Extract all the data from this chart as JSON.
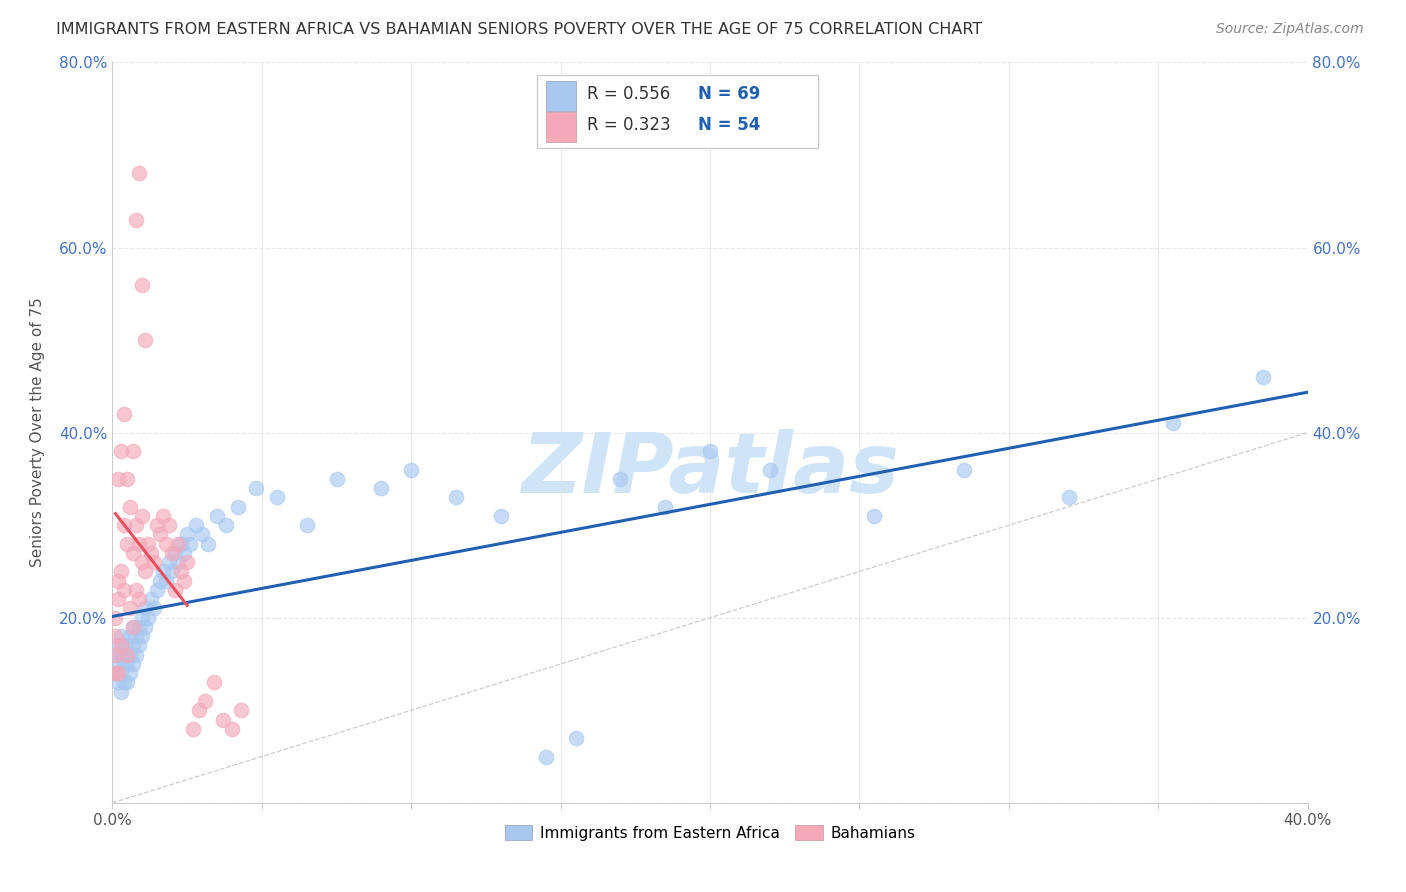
{
  "title": "IMMIGRANTS FROM EASTERN AFRICA VS BAHAMIAN SENIORS POVERTY OVER THE AGE OF 75 CORRELATION CHART",
  "source": "Source: ZipAtlas.com",
  "ylabel": "Seniors Poverty Over the Age of 75",
  "xlim": [
    0.0,
    0.4
  ],
  "ylim": [
    0.0,
    0.8
  ],
  "blue_color": "#a8c8f0",
  "pink_color": "#f4a8b8",
  "blue_line_color": "#2060b0",
  "pink_line_color": "#e85060",
  "blue_R": 0.556,
  "blue_N": 69,
  "pink_R": 0.323,
  "pink_N": 54,
  "watermark": "ZIPatlas",
  "watermark_color": "#d0e4f8",
  "legend_label_blue": "Immigrants from Eastern Africa",
  "legend_label_pink": "Bahamians",
  "blue_scatter_x": [
    0.001,
    0.001,
    0.002,
    0.002,
    0.002,
    0.003,
    0.003,
    0.003,
    0.003,
    0.004,
    0.004,
    0.004,
    0.005,
    0.005,
    0.005,
    0.006,
    0.006,
    0.006,
    0.007,
    0.007,
    0.007,
    0.008,
    0.008,
    0.009,
    0.009,
    0.01,
    0.01,
    0.011,
    0.011,
    0.012,
    0.013,
    0.014,
    0.015,
    0.016,
    0.017,
    0.018,
    0.019,
    0.02,
    0.021,
    0.022,
    0.023,
    0.024,
    0.025,
    0.026,
    0.028,
    0.03,
    0.032,
    0.035,
    0.038,
    0.042,
    0.048,
    0.055,
    0.065,
    0.075,
    0.09,
    0.1,
    0.115,
    0.13,
    0.145,
    0.155,
    0.17,
    0.185,
    0.2,
    0.22,
    0.255,
    0.285,
    0.32,
    0.355,
    0.385
  ],
  "blue_scatter_y": [
    0.14,
    0.16,
    0.13,
    0.15,
    0.17,
    0.12,
    0.14,
    0.16,
    0.18,
    0.13,
    0.15,
    0.17,
    0.13,
    0.15,
    0.16,
    0.14,
    0.16,
    0.18,
    0.15,
    0.17,
    0.19,
    0.16,
    0.18,
    0.17,
    0.19,
    0.18,
    0.2,
    0.19,
    0.21,
    0.2,
    0.22,
    0.21,
    0.23,
    0.24,
    0.25,
    0.24,
    0.26,
    0.25,
    0.27,
    0.26,
    0.28,
    0.27,
    0.29,
    0.28,
    0.3,
    0.29,
    0.28,
    0.31,
    0.3,
    0.32,
    0.34,
    0.33,
    0.3,
    0.35,
    0.34,
    0.36,
    0.33,
    0.31,
    0.05,
    0.07,
    0.35,
    0.32,
    0.38,
    0.36,
    0.31,
    0.36,
    0.33,
    0.41,
    0.46
  ],
  "pink_scatter_x": [
    0.001,
    0.001,
    0.001,
    0.001,
    0.002,
    0.002,
    0.002,
    0.002,
    0.003,
    0.003,
    0.003,
    0.004,
    0.004,
    0.004,
    0.005,
    0.005,
    0.005,
    0.006,
    0.006,
    0.007,
    0.007,
    0.007,
    0.008,
    0.008,
    0.009,
    0.009,
    0.01,
    0.01,
    0.011,
    0.012,
    0.013,
    0.014,
    0.015,
    0.016,
    0.017,
    0.018,
    0.019,
    0.02,
    0.021,
    0.022,
    0.023,
    0.024,
    0.025,
    0.027,
    0.029,
    0.031,
    0.034,
    0.037,
    0.04,
    0.043,
    0.008,
    0.009,
    0.01,
    0.011
  ],
  "pink_scatter_y": [
    0.14,
    0.16,
    0.18,
    0.2,
    0.14,
    0.22,
    0.24,
    0.35,
    0.17,
    0.25,
    0.38,
    0.23,
    0.3,
    0.42,
    0.16,
    0.28,
    0.35,
    0.21,
    0.32,
    0.19,
    0.27,
    0.38,
    0.23,
    0.3,
    0.22,
    0.28,
    0.26,
    0.31,
    0.25,
    0.28,
    0.27,
    0.26,
    0.3,
    0.29,
    0.31,
    0.28,
    0.3,
    0.27,
    0.23,
    0.28,
    0.25,
    0.24,
    0.26,
    0.08,
    0.1,
    0.11,
    0.13,
    0.09,
    0.08,
    0.1,
    0.63,
    0.68,
    0.56,
    0.5
  ],
  "diag_line_color": "#cccccc",
  "grid_color": "#e8e8e8",
  "tick_color": "#4472c4",
  "title_color": "#333333",
  "source_color": "#888888"
}
